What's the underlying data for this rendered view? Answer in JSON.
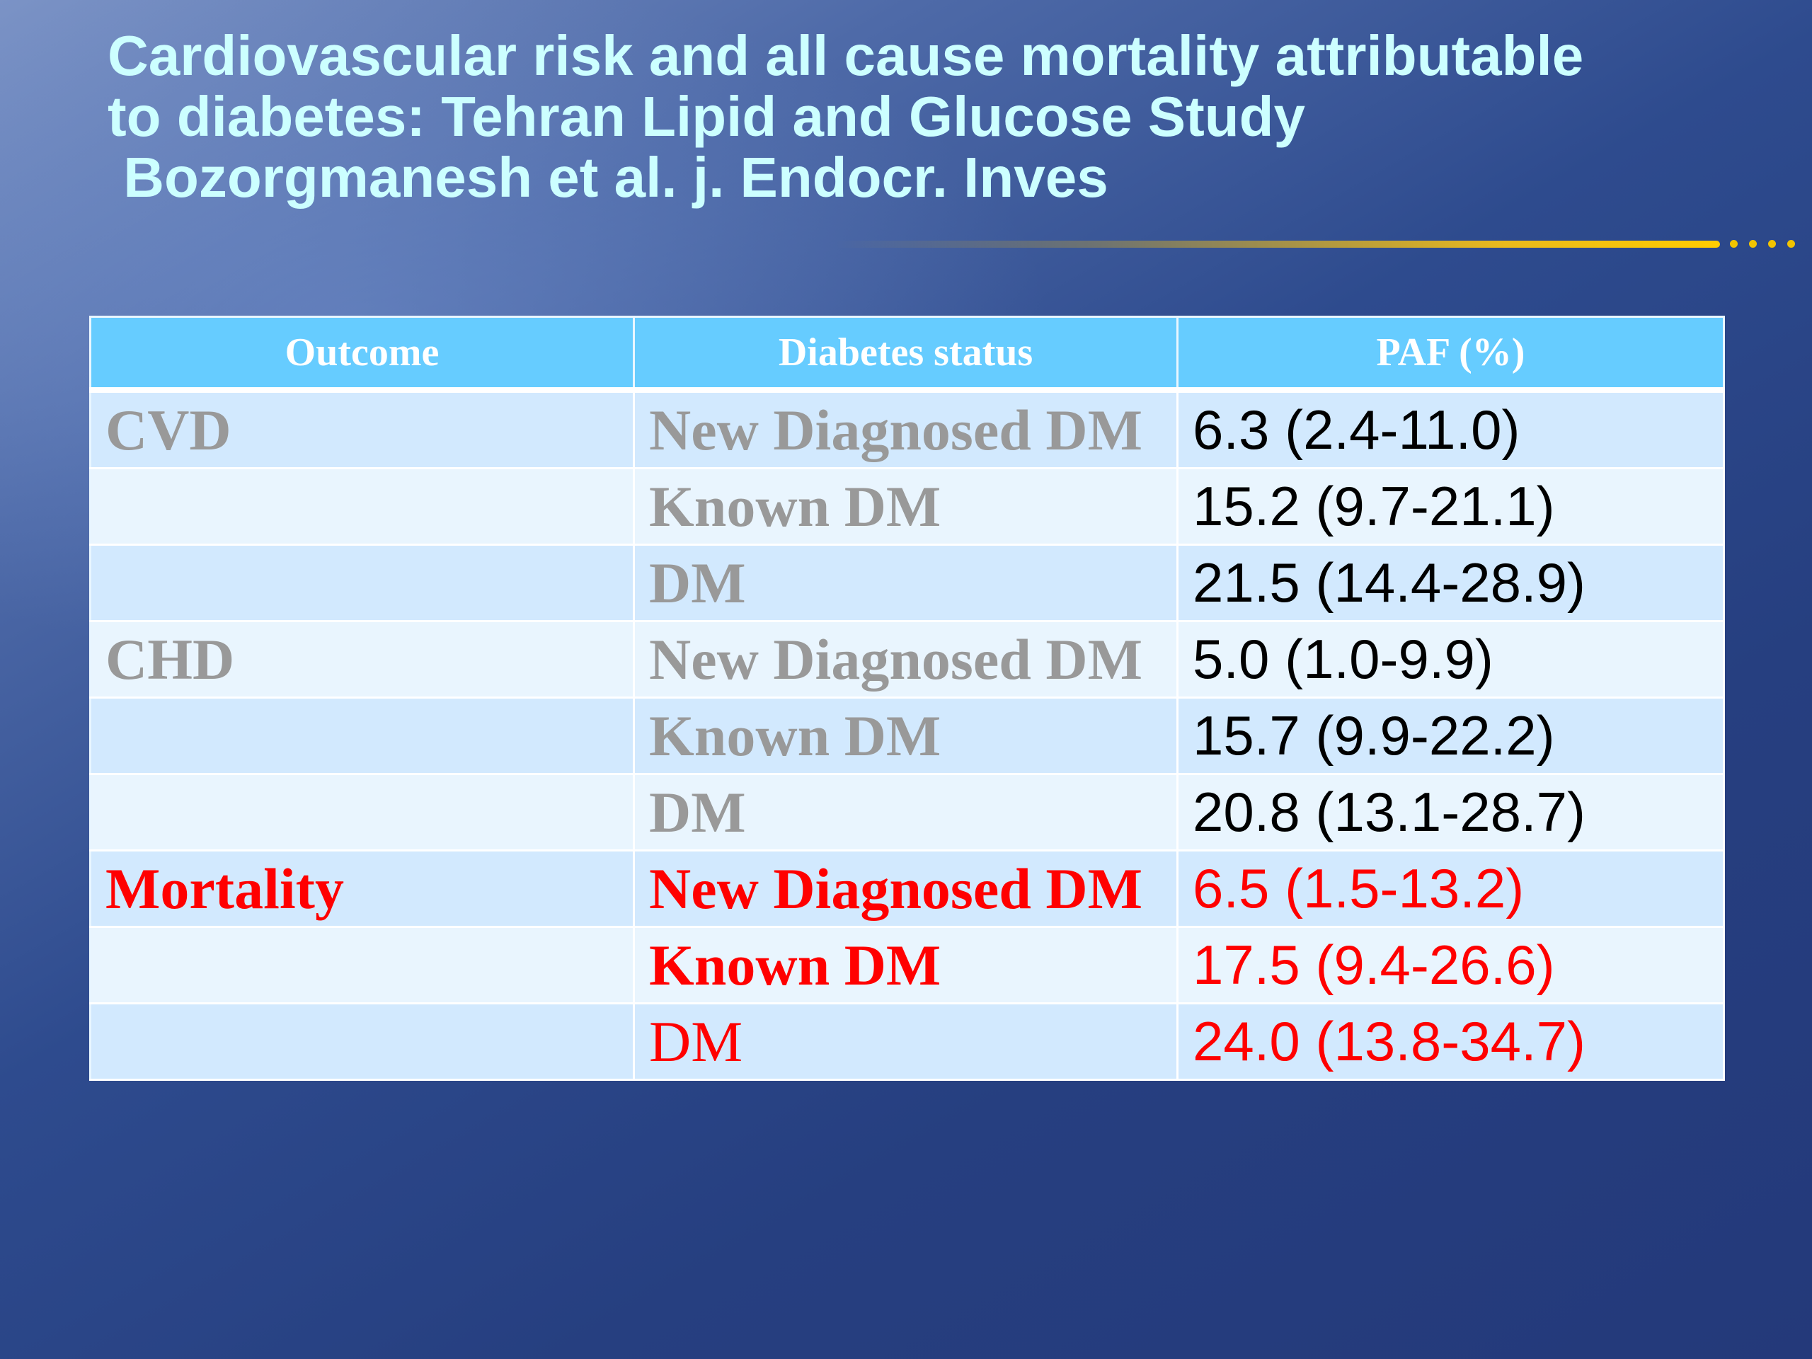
{
  "title": {
    "line1": "Cardiovascular risk and all cause mortality attributable",
    "line2": "to diabetes: Tehran Lipid and Glucose Study",
    "line3": " Bozorgmanesh et al. j. Endocr. Inves"
  },
  "colors": {
    "title": "#ccffff",
    "header_bg": "#66ccff",
    "row_dark": "#d2e9fe",
    "row_light": "#e9f5fe",
    "grey_text": "#999999",
    "highlight": "#ff0000",
    "rule_accent": "#ffcc00"
  },
  "table": {
    "headers": [
      "Outcome",
      "Diabetes status",
      "PAF (%)"
    ],
    "rows": [
      {
        "outcome": "CVD",
        "status": "New Diagnosed DM",
        "paf": "6.3 (2.4-11.0)"
      },
      {
        "outcome": "",
        "status": "Known DM",
        "paf": "15.2 (9.7-21.1)"
      },
      {
        "outcome": "",
        "status": "DM",
        "paf": "21.5 (14.4-28.9)"
      },
      {
        "outcome": "CHD",
        "status": "New Diagnosed DM",
        "paf": "5.0 (1.0-9.9)"
      },
      {
        "outcome": "",
        "status": "Known DM",
        "paf": "15.7 (9.9-22.2)"
      },
      {
        "outcome": "",
        "status": "DM",
        "paf": "20.8 (13.1-28.7)"
      },
      {
        "outcome": "Mortality",
        "status": "New Diagnosed DM",
        "paf": "6.5 (1.5-13.2)"
      },
      {
        "outcome": "",
        "status": "Known DM",
        "paf": "17.5 (9.4-26.6)"
      },
      {
        "outcome": "",
        "status": "DM",
        "paf": "24.0 (13.8-34.7)"
      }
    ]
  }
}
